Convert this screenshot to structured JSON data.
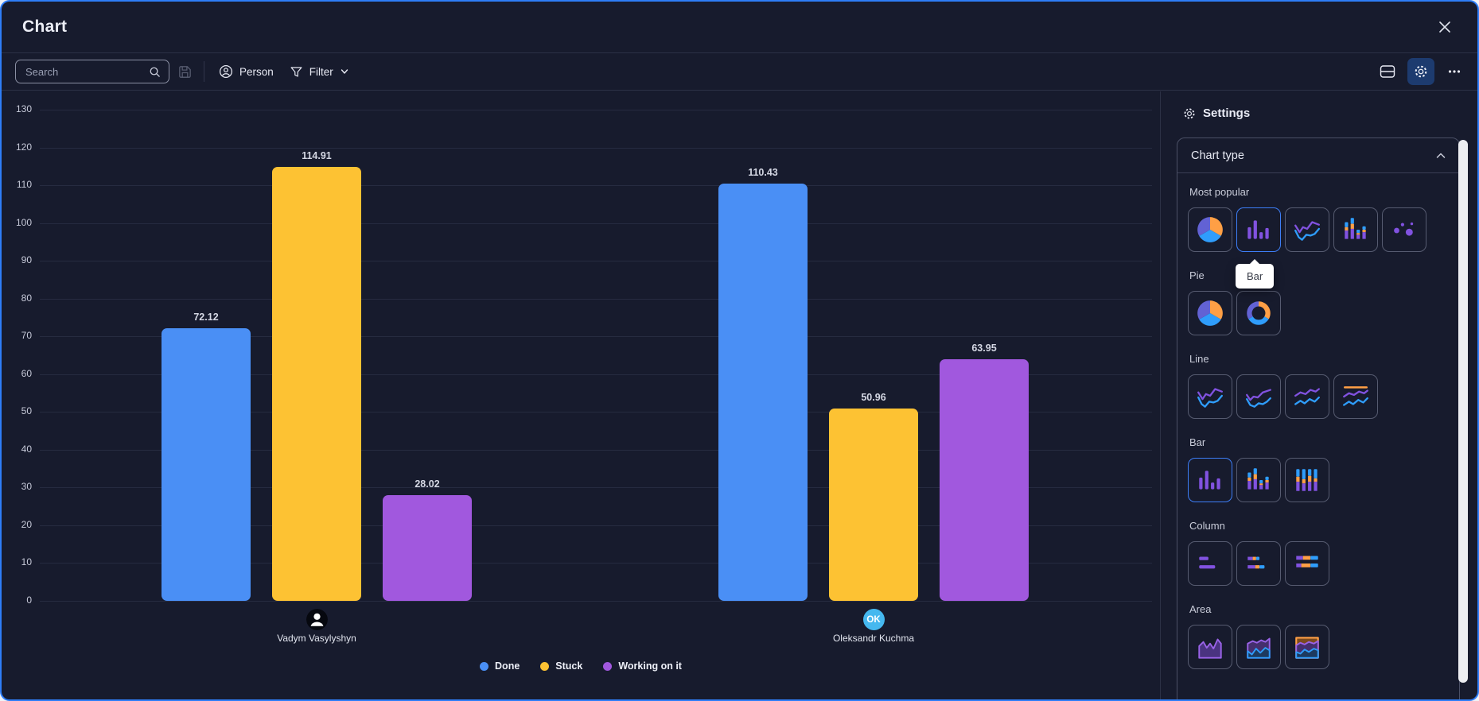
{
  "window": {
    "title": "Chart"
  },
  "toolbar": {
    "search_placeholder": "Search",
    "person_label": "Person",
    "filter_label": "Filter"
  },
  "icons": {
    "close": "x-icon",
    "search": "magnifier-icon",
    "save": "floppy-disk-icon",
    "person": "person-circle-icon",
    "filter": "funnel-icon",
    "filter_chevron": "chevron-down-icon",
    "split_view": "split-rows-icon",
    "settings": "gear-icon",
    "more": "ellipsis-icon",
    "collapse": "chevron-up-icon"
  },
  "settings": {
    "title": "Settings",
    "card_title": "Chart type",
    "tooltip_label": "Bar",
    "sections": [
      {
        "label": "Most popular",
        "tiles": [
          "pie",
          "bar",
          "line",
          "stacked-bar",
          "scatter"
        ],
        "selected": "bar"
      },
      {
        "label": "Pie",
        "tiles": [
          "pie",
          "donut"
        ]
      },
      {
        "label": "Line",
        "tiles": [
          "line",
          "line-variant",
          "line-dual",
          "line-benchmark"
        ]
      },
      {
        "label": "Bar",
        "tiles": [
          "bar",
          "bar-stacked",
          "bar-stacked-full"
        ],
        "selected": "bar"
      },
      {
        "label": "Column",
        "tiles": [
          "column",
          "column-stacked",
          "column-stacked-full"
        ]
      },
      {
        "label": "Area",
        "tiles": [
          "area",
          "area-stacked",
          "area-stacked-full"
        ]
      }
    ]
  },
  "chart_data": {
    "type": "bar",
    "title": "",
    "categories": [
      "Vadym Vasylyshyn",
      "Oleksandr Kuchma"
    ],
    "series": [
      {
        "name": "Done",
        "color": "#4a8ff5",
        "values": [
          72.12,
          110.43
        ]
      },
      {
        "name": "Stuck",
        "color": "#fdc233",
        "values": [
          114.91,
          50.96
        ]
      },
      {
        "name": "Working on it",
        "color": "#a158de",
        "values": [
          28.02,
          63.95
        ]
      }
    ],
    "value_label_decimals": 2,
    "ylim": [
      0,
      130
    ],
    "ytick_step": 10,
    "grid": true,
    "legend_position": "bottom",
    "avatars": [
      {
        "type": "person-silhouette"
      },
      {
        "type": "initials",
        "text": "OK",
        "color": "#45b8ef"
      }
    ]
  }
}
